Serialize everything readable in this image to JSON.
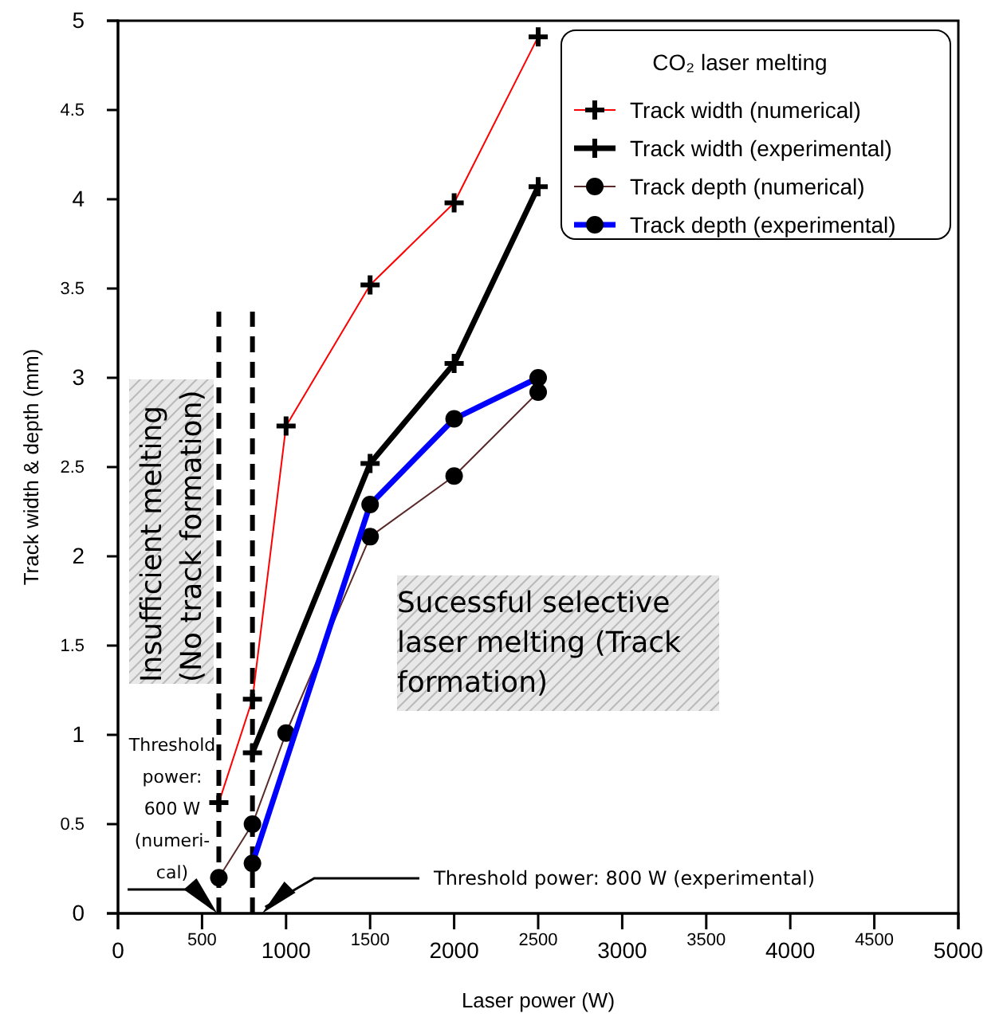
{
  "chart_data": {
    "type": "line",
    "xlabel": "Laser power (W)",
    "ylabel": "Track width & depth (mm)",
    "legend_title": "CO₂ laser melting",
    "legend": "top right",
    "xlim": [
      0,
      5000
    ],
    "xticks": [
      0,
      500,
      1000,
      1500,
      2000,
      2500,
      3000,
      3500,
      4000,
      4500,
      5000
    ],
    "ylim": [
      0,
      5
    ],
    "yticks": [
      0,
      0.5,
      1,
      1.5,
      2,
      2.5,
      3,
      3.5,
      4,
      4.5,
      5
    ],
    "grid": false,
    "series": [
      {
        "name": "Track width (numerical)",
        "color": "#ff0000",
        "marker": "cross",
        "x": [
          600,
          800,
          1000,
          1500,
          2000,
          2500
        ],
        "values": [
          0.62,
          1.2,
          2.73,
          3.52,
          3.98,
          4.91
        ]
      },
      {
        "name": "Track width (experimental)",
        "color": "#000000",
        "marker": "cross",
        "x": [
          800,
          1500,
          2000,
          2500
        ],
        "values": [
          0.9,
          2.52,
          3.08,
          4.07
        ]
      },
      {
        "name": "Track depth (numerical)",
        "color": "#5a2a2a",
        "marker": "circle",
        "x": [
          600,
          800,
          1000,
          1500,
          2000,
          2500
        ],
        "values": [
          0.2,
          0.5,
          1.01,
          2.11,
          2.45,
          2.92
        ]
      },
      {
        "name": "Track depth (experimental)",
        "color": "#0000ff",
        "marker": "circle",
        "x": [
          800,
          1500,
          2000,
          2500
        ],
        "values": [
          0.28,
          2.29,
          2.77,
          3.0
        ]
      }
    ],
    "ref_lines": [
      {
        "axis": "x",
        "value": 600,
        "line_style": "dashed",
        "color": "#000000"
      },
      {
        "axis": "x",
        "value": 800,
        "line_style": "dashed",
        "color": "#000000"
      }
    ],
    "annotations": [
      "Insufficient melting\n(No track formation)",
      "Sucessful selective\nlaser melting (Track\nformation)",
      "Threshold\npower:\n600 W\n(numeri-\ncal)",
      "Threshold power: 800 W (experimental)"
    ]
  }
}
